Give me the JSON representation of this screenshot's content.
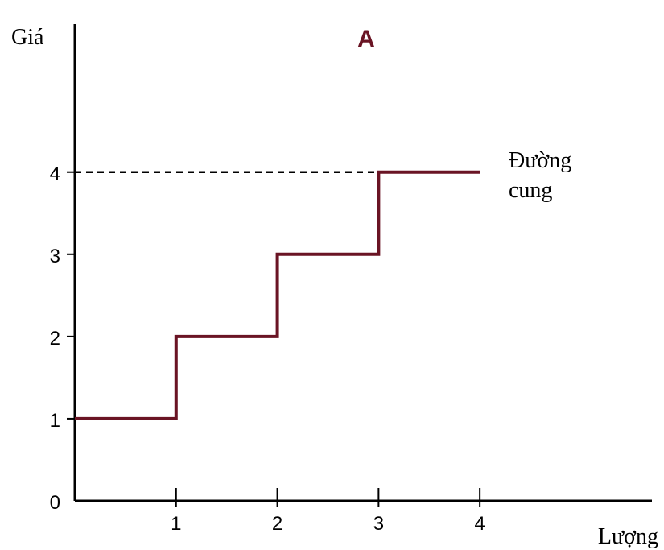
{
  "chart_data": {
    "type": "line",
    "title": "A",
    "ylabel": "Giá",
    "xlabel": "Lượng",
    "x_ticks": [
      "1",
      "2",
      "3",
      "4"
    ],
    "y_ticks": [
      "0",
      "1",
      "2",
      "3",
      "4"
    ],
    "xlim": [
      0,
      5.7
    ],
    "ylim": [
      0,
      5.8
    ],
    "series": [
      {
        "name": "Đường cung",
        "line_shape": "step",
        "color": "#6a1424",
        "x": [
          0,
          1,
          1,
          2,
          2,
          3,
          3,
          4
        ],
        "y": [
          1,
          1,
          2,
          2,
          3,
          3,
          4,
          4
        ]
      }
    ],
    "series_label_lines": [
      "Đường",
      "cung"
    ],
    "reference_line": {
      "y": 4,
      "from_x": 0,
      "to_x": 3,
      "style": "dashed",
      "color": "#000000"
    },
    "grid": false,
    "legend": "none"
  }
}
